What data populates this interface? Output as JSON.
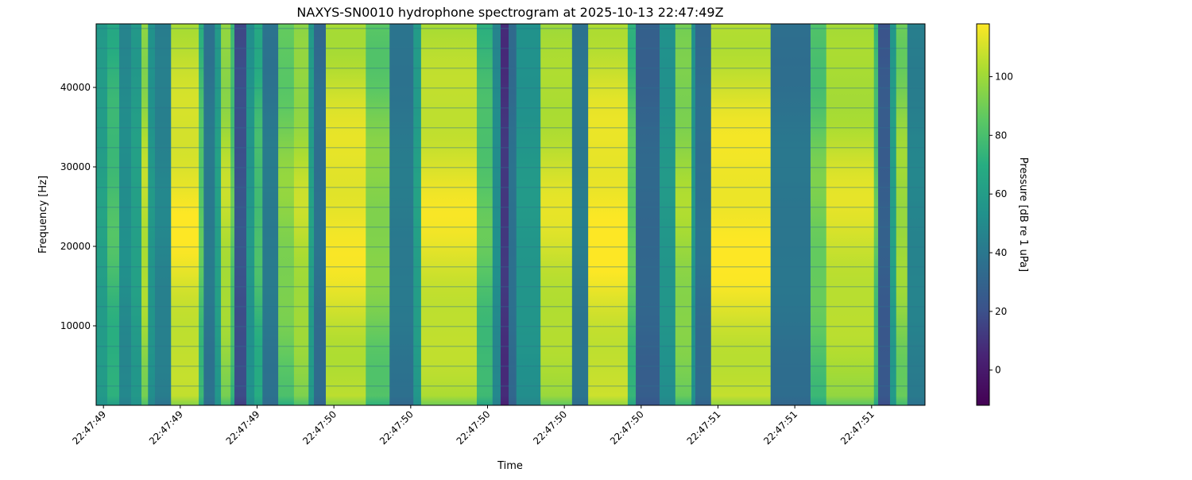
{
  "chart_data": {
    "type": "heatmap",
    "title": "NAXYS-SN0010 hydrophone spectrogram at 2025-10-13 22:47:49Z",
    "xlabel": "Time",
    "ylabel": "Frequency [Hz]",
    "colorbar_label": "Pressure [dB re 1 uPa]",
    "colormap": "viridis",
    "x_unit": "seconds past 22:47",
    "xlim": [
      49.381,
      51.539
    ],
    "ylim": [
      0,
      48000
    ],
    "clim": [
      -12,
      118
    ],
    "x_ticks": [
      49.4,
      49.6,
      49.8,
      50.0,
      50.2,
      50.4,
      50.6,
      50.8,
      51.0,
      51.2,
      51.4
    ],
    "x_tick_labels": [
      "22:47:49",
      "22:47:49",
      "22:47:49",
      "22:47:50",
      "22:47:50",
      "22:47:50",
      "22:47:50",
      "22:47:50",
      "22:47:51",
      "22:47:51",
      "22:47:51"
    ],
    "y_ticks": [
      10000,
      20000,
      30000,
      40000
    ],
    "y_tick_labels": [
      "10000",
      "20000",
      "30000",
      "40000"
    ],
    "colorbar_ticks": [
      0,
      20,
      40,
      60,
      80,
      100
    ],
    "colorbar_tick_labels": [
      "0",
      "20",
      "40",
      "60",
      "80",
      "100"
    ],
    "segments": [
      [
        49.381,
        49.41,
        60
      ],
      [
        49.41,
        49.441,
        75
      ],
      [
        49.441,
        49.472,
        50
      ],
      [
        49.472,
        49.499,
        60
      ],
      [
        49.499,
        49.516,
        100
      ],
      [
        49.516,
        49.534,
        55
      ],
      [
        49.534,
        49.576,
        45
      ],
      [
        49.576,
        49.648,
        110
      ],
      [
        49.648,
        49.661,
        80
      ],
      [
        49.661,
        49.69,
        40
      ],
      [
        49.69,
        49.706,
        60
      ],
      [
        49.706,
        49.731,
        100
      ],
      [
        49.731,
        49.741,
        80
      ],
      [
        49.741,
        49.772,
        20
      ],
      [
        49.772,
        49.793,
        55
      ],
      [
        49.793,
        49.814,
        75
      ],
      [
        49.814,
        49.855,
        40
      ],
      [
        49.855,
        49.896,
        90
      ],
      [
        49.896,
        49.934,
        100
      ],
      [
        49.934,
        49.948,
        60
      ],
      [
        49.948,
        49.979,
        35
      ],
      [
        49.979,
        50.083,
        110
      ],
      [
        50.083,
        50.145,
        90
      ],
      [
        50.145,
        50.207,
        40
      ],
      [
        50.207,
        50.227,
        60
      ],
      [
        50.227,
        50.372,
        108
      ],
      [
        50.372,
        50.413,
        80
      ],
      [
        50.413,
        50.434,
        50
      ],
      [
        50.434,
        50.455,
        10
      ],
      [
        50.455,
        50.475,
        35
      ],
      [
        50.475,
        50.538,
        55
      ],
      [
        50.538,
        50.62,
        105
      ],
      [
        50.62,
        50.662,
        40
      ],
      [
        50.662,
        50.765,
        112
      ],
      [
        50.765,
        50.786,
        80
      ],
      [
        50.786,
        50.848,
        30
      ],
      [
        50.848,
        50.889,
        55
      ],
      [
        50.889,
        50.931,
        95
      ],
      [
        50.931,
        50.941,
        55
      ],
      [
        50.941,
        50.982,
        35
      ],
      [
        50.982,
        51.137,
        112
      ],
      [
        51.137,
        51.241,
        38
      ],
      [
        51.241,
        51.282,
        85
      ],
      [
        51.282,
        51.406,
        105
      ],
      [
        51.406,
        51.417,
        80
      ],
      [
        51.417,
        51.448,
        25
      ],
      [
        51.448,
        51.464,
        60
      ],
      [
        51.464,
        51.493,
        95
      ],
      [
        51.493,
        51.539,
        45
      ]
    ]
  }
}
